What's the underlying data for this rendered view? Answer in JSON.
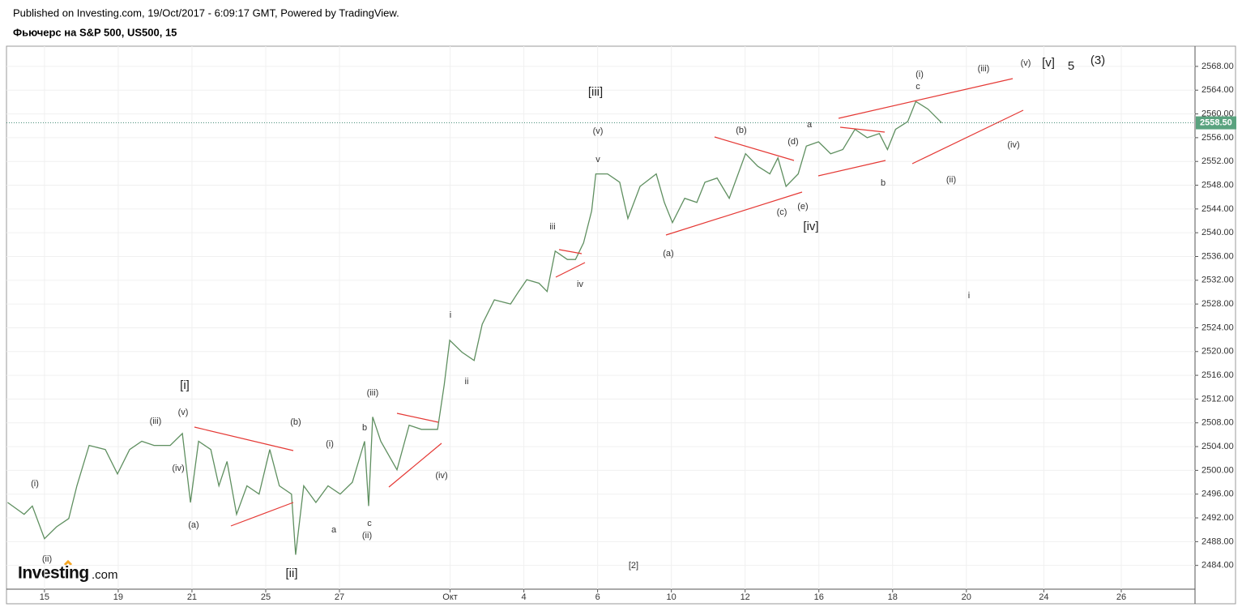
{
  "header": {
    "published": "Published on Investing.com, 19/Oct/2017 - 6:09:17 GMT, Powered by TradingView.",
    "instrument": "Фьючерс на S&P 500, US500, 15"
  },
  "logo": {
    "brand": "Investing",
    "suffix": ".com"
  },
  "chart_data": {
    "type": "line",
    "color": "#5f8f60",
    "grid": true,
    "x": [
      -1.0,
      -0.55,
      -0.33,
      0,
      0.33,
      0.66,
      0.88,
      1.21,
      1.65,
      1.98,
      2.31,
      2.64,
      2.97,
      3.41,
      3.74,
      3.96,
      4.18,
      4.51,
      4.73,
      4.95,
      5.21,
      5.49,
      5.82,
      6.11,
      6.37,
      6.7,
      6.81,
      7.03,
      7.36,
      7.69,
      8.02,
      8.35,
      8.68,
      8.79,
      8.9,
      9.12,
      9.56,
      9.89,
      10.22,
      10.66,
      10.84,
      10.99,
      11.32,
      11.65,
      11.87,
      12.2,
      12.64,
      12.86,
      13.08,
      13.41,
      13.63,
      13.85,
      14.18,
      14.4,
      14.62,
      14.84,
      14.95,
      15.27,
      15.6,
      15.82,
      16.15,
      16.59,
      16.81,
      17.03,
      17.36,
      17.69,
      17.91,
      18.24,
      18.57,
      19.01,
      19.34,
      19.67,
      19.89,
      20.11,
      20.44,
      20.66,
      20.99,
      21.32,
      21.65,
      21.98,
      22.31,
      22.64,
      22.86,
      23.08,
      23.41,
      23.63,
      23.96,
      24.33
    ],
    "values": [
      2494.6,
      2492.6,
      2494.0,
      2488.5,
      2490.5,
      2491.9,
      2497.4,
      2504.2,
      2503.5,
      2499.4,
      2503.5,
      2504.9,
      2504.2,
      2504.2,
      2506.2,
      2494.6,
      2504.9,
      2503.5,
      2497.4,
      2501.5,
      2492.6,
      2497.4,
      2496.0,
      2503.5,
      2497.4,
      2496.0,
      2485.8,
      2497.4,
      2494.6,
      2497.4,
      2496.0,
      2498.0,
      2504.9,
      2494.0,
      2509.0,
      2504.9,
      2500.1,
      2507.6,
      2506.9,
      2506.9,
      2514.4,
      2521.9,
      2519.9,
      2518.5,
      2524.6,
      2528.7,
      2528.0,
      2530.1,
      2532.1,
      2531.5,
      2530.1,
      2536.9,
      2535.5,
      2535.5,
      2538.3,
      2543.7,
      2549.9,
      2549.9,
      2548.5,
      2542.4,
      2547.8,
      2549.9,
      2545.1,
      2541.7,
      2545.8,
      2545.1,
      2548.5,
      2549.2,
      2545.8,
      2553.3,
      2551.2,
      2549.9,
      2552.6,
      2547.8,
      2549.9,
      2554.6,
      2555.3,
      2553.3,
      2554.0,
      2557.4,
      2556.0,
      2556.7,
      2554.0,
      2557.4,
      2558.7,
      2562.1,
      2560.8,
      2558.5
    ],
    "last_price": {
      "value": 2558.5,
      "label": "2558.50"
    },
    "xlim": [
      -1.03,
      31.2
    ],
    "ylim": [
      2480.0,
      2571.4
    ],
    "xticks": [
      {
        "value": 0,
        "label": "15"
      },
      {
        "value": 2,
        "label": "19"
      },
      {
        "value": 4,
        "label": "21"
      },
      {
        "value": 6,
        "label": "25"
      },
      {
        "value": 8,
        "label": "27"
      },
      {
        "value": 11,
        "label": "Окт"
      },
      {
        "value": 13,
        "label": "4"
      },
      {
        "value": 15,
        "label": "6"
      },
      {
        "value": 17,
        "label": "10"
      },
      {
        "value": 19,
        "label": "12"
      },
      {
        "value": 21,
        "label": "16"
      },
      {
        "value": 23,
        "label": "18"
      },
      {
        "value": 25,
        "label": "20"
      },
      {
        "value": 27.1,
        "label": "24"
      },
      {
        "value": 29.2,
        "label": "26"
      }
    ],
    "yticks": [
      {
        "value": 2484,
        "label": "2484.00"
      },
      {
        "value": 2488,
        "label": "2488.00"
      },
      {
        "value": 2492,
        "label": "2492.00"
      },
      {
        "value": 2496,
        "label": "2496.00"
      },
      {
        "value": 2500,
        "label": "2500.00"
      },
      {
        "value": 2504,
        "label": "2504.00"
      },
      {
        "value": 2508,
        "label": "2508.00"
      },
      {
        "value": 2512,
        "label": "2512.00"
      },
      {
        "value": 2516,
        "label": "2516.00"
      },
      {
        "value": 2520,
        "label": "2520.00"
      },
      {
        "value": 2524,
        "label": "2524.00"
      },
      {
        "value": 2528,
        "label": "2528.00"
      },
      {
        "value": 2532,
        "label": "2532.00"
      },
      {
        "value": 2536,
        "label": "2536.00"
      },
      {
        "value": 2540,
        "label": "2540.00"
      },
      {
        "value": 2544,
        "label": "2544.00"
      },
      {
        "value": 2548,
        "label": "2548.00"
      },
      {
        "value": 2552,
        "label": "2552.00"
      },
      {
        "value": 2556,
        "label": "2556.00"
      },
      {
        "value": 2560,
        "label": "2560.00"
      },
      {
        "value": 2564,
        "label": "2564.00"
      },
      {
        "value": 2568,
        "label": "2568.00"
      }
    ],
    "annotations": [
      "(i)",
      "(ii)",
      "(iii)",
      "(iv)",
      "(v)",
      "[i]",
      "(a)",
      "(b)",
      "[ii]",
      "(i)",
      "a",
      "b",
      "c",
      "(ii)",
      "(iii)",
      "(iv)",
      "i",
      "ii",
      "iii",
      "iv",
      "v",
      "(v)",
      "[iii]",
      "(a)",
      "(b)",
      "(c)",
      "(d)",
      "(e)",
      "a",
      "[iv]",
      "b",
      "c",
      "(i)",
      "(ii)",
      "(iii)",
      "(iv)",
      "(v)",
      "[v]",
      "5",
      "(3)",
      "i",
      "[2]"
    ]
  }
}
